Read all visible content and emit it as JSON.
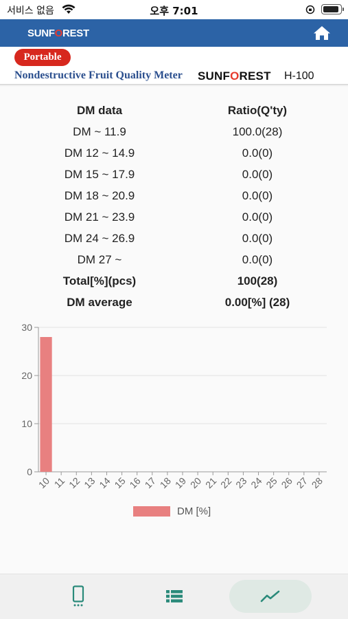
{
  "status_bar": {
    "carrier": "서비스 없음",
    "time": "오후 7:01"
  },
  "app_bar": {
    "logo_pre": "SUNF",
    "logo_o": "O",
    "logo_post": "REST",
    "home_icon": "home-icon"
  },
  "banner": {
    "badge": "Portable",
    "subtitle": "Nondestructive Fruit Quality Meter",
    "brand_pre": "SUNF",
    "brand_o": "O",
    "brand_post": "REST",
    "model": "H-100"
  },
  "table": {
    "header": {
      "col1": "DM data",
      "col2": "Ratio(Q'ty)"
    },
    "rows": [
      {
        "range": "DM ~ 11.9",
        "ratio": "100.0(28)"
      },
      {
        "range": "DM 12 ~ 14.9",
        "ratio": "0.0(0)"
      },
      {
        "range": "DM 15 ~ 17.9",
        "ratio": "0.0(0)"
      },
      {
        "range": "DM 18 ~ 20.9",
        "ratio": "0.0(0)"
      },
      {
        "range": "DM 21 ~ 23.9",
        "ratio": "0.0(0)"
      },
      {
        "range": "DM 24 ~ 26.9",
        "ratio": "0.0(0)"
      },
      {
        "range": "DM 27 ~",
        "ratio": "0.0(0)"
      }
    ],
    "total": {
      "label": "Total[%](pcs)",
      "value": "100(28)"
    },
    "average": {
      "label": "DM average",
      "value": "0.00[%] (28)"
    }
  },
  "chart_data": {
    "type": "bar",
    "categories": [
      "10",
      "11",
      "12",
      "13",
      "14",
      "15",
      "16",
      "17",
      "18",
      "19",
      "20",
      "21",
      "22",
      "23",
      "24",
      "25",
      "26",
      "27",
      "28"
    ],
    "series": [
      {
        "name": "DM [%]",
        "values": [
          28,
          0,
          0,
          0,
          0,
          0,
          0,
          0,
          0,
          0,
          0,
          0,
          0,
          0,
          0,
          0,
          0,
          0,
          0
        ]
      }
    ],
    "yticks": [
      0,
      10,
      20,
      30
    ],
    "ylim": [
      0,
      30
    ],
    "grid": true,
    "legend_position": "bottom",
    "bar_color": "#e88080"
  },
  "bottom_nav": {
    "tabs": [
      {
        "icon": "phone-icon",
        "active": false
      },
      {
        "icon": "list-icon",
        "active": false
      },
      {
        "icon": "trend-chart-icon",
        "active": true
      }
    ],
    "accent": "#2a8a7a"
  }
}
